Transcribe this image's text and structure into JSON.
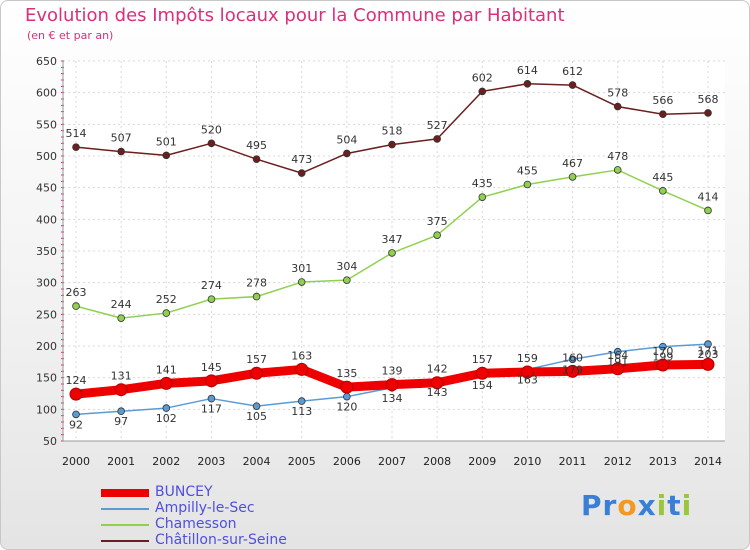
{
  "chart_data": {
    "type": "line",
    "title": "Evolution des Impôts locaux pour la Commune par Habitant",
    "subtitle": "(en € et par an)",
    "x": [
      "2000",
      "2001",
      "2002",
      "2003",
      "2004",
      "2005",
      "2006",
      "2007",
      "2008",
      "2009",
      "2010",
      "2011",
      "2012",
      "2013",
      "2014"
    ],
    "ylim": [
      50,
      650
    ],
    "yticks": [
      50,
      100,
      150,
      200,
      250,
      300,
      350,
      400,
      450,
      500,
      550,
      600,
      650
    ],
    "grid": true,
    "legend_position": "bottom-left",
    "series": [
      {
        "name": "BUNCEY",
        "color": "#ee0000",
        "values": [
          124,
          131,
          141,
          145,
          157,
          163,
          135,
          139,
          142,
          157,
          159,
          160,
          164,
          170,
          171
        ],
        "labels": [
          "124",
          "131",
          "141",
          "145",
          "157",
          "163",
          "135",
          "139",
          "142",
          "157",
          "159",
          "160",
          "164",
          "170",
          "171"
        ]
      },
      {
        "name": "Ampilly-le-Sec",
        "color": "#5b9bd5",
        "values": [
          92,
          97,
          102,
          117,
          105,
          113,
          120,
          134,
          143,
          154,
          163,
          179,
          191,
          199,
          203
        ],
        "labels": [
          "92",
          "97",
          "102",
          "117",
          "105",
          "113",
          "120",
          "134",
          "143",
          "154",
          "163",
          "179",
          "191",
          "199",
          "203"
        ]
      },
      {
        "name": "Chamesson",
        "color": "#8fd14f",
        "values": [
          263,
          244,
          252,
          274,
          278,
          301,
          304,
          347,
          375,
          435,
          455,
          467,
          478,
          445,
          414
        ],
        "labels": [
          "263",
          "244",
          "252",
          "274",
          "278",
          "301",
          "304",
          "347",
          "375",
          "435",
          "455",
          "467",
          "478",
          "445",
          "414"
        ]
      },
      {
        "name": "Châtillon-sur-Seine",
        "color": "#6b1f1f",
        "values": [
          514,
          507,
          501,
          520,
          495,
          473,
          504,
          518,
          527,
          602,
          614,
          612,
          578,
          566,
          568
        ],
        "labels": [
          "514",
          "507",
          "501",
          "520",
          "495",
          "473",
          "504",
          "518",
          "527",
          "602",
          "614",
          "612",
          "578",
          "566",
          "568"
        ]
      }
    ]
  },
  "logo": {
    "text": "Proxiti",
    "letters": [
      "P",
      "r",
      "o",
      "x",
      "i",
      "t",
      "i"
    ],
    "colors": [
      "#3a7fd5",
      "#3a7fd5",
      "#f29a1f",
      "#3a7fd5",
      "#9bc53d",
      "#3a7fd5",
      "#9bc53d"
    ]
  }
}
